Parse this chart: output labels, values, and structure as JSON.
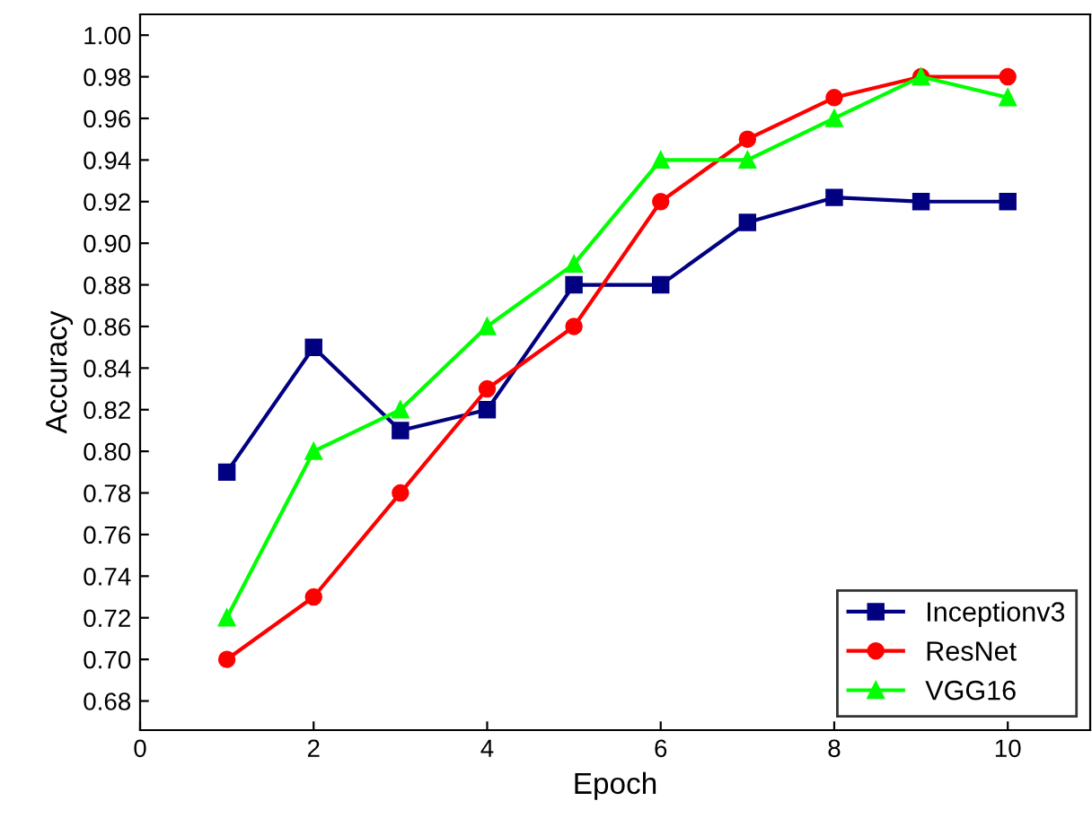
{
  "chart_data": {
    "type": "line",
    "xlabel": "Epoch",
    "ylabel": "Accuracy",
    "x": [
      1,
      2,
      3,
      4,
      5,
      6,
      7,
      8,
      9,
      10
    ],
    "series": [
      {
        "name": "Inceptionv3",
        "color": "#000080",
        "marker": "square",
        "values": [
          0.79,
          0.85,
          0.81,
          0.82,
          0.88,
          0.88,
          0.91,
          0.922,
          0.92,
          0.92
        ]
      },
      {
        "name": "ResNet",
        "color": "#ff0000",
        "marker": "circle",
        "values": [
          0.7,
          0.73,
          0.78,
          0.83,
          0.86,
          0.92,
          0.95,
          0.97,
          0.98,
          0.98
        ]
      },
      {
        "name": "VGG16",
        "color": "#00ff00",
        "marker": "triangle",
        "values": [
          0.72,
          0.8,
          0.82,
          0.86,
          0.89,
          0.94,
          0.94,
          0.96,
          0.98,
          0.97
        ]
      }
    ],
    "xlim": [
      0,
      10.95
    ],
    "xticks": [
      0,
      2,
      4,
      6,
      8,
      10
    ],
    "ylim": [
      0.666,
      1.01
    ],
    "yticks": [
      0.68,
      {
        "value": 0.7,
        "label": "0.70"
      },
      0.72,
      0.74,
      0.76,
      0.78,
      {
        "value": 0.8,
        "label": "0.80"
      },
      0.82,
      0.84,
      0.86,
      0.88,
      {
        "value": 0.9,
        "label": "0.90"
      },
      0.92,
      0.94,
      0.96,
      0.98,
      {
        "value": 1,
        "label": "1.00"
      }
    ],
    "grid": false,
    "legend": "bottom right",
    "line_style": "solid"
  }
}
